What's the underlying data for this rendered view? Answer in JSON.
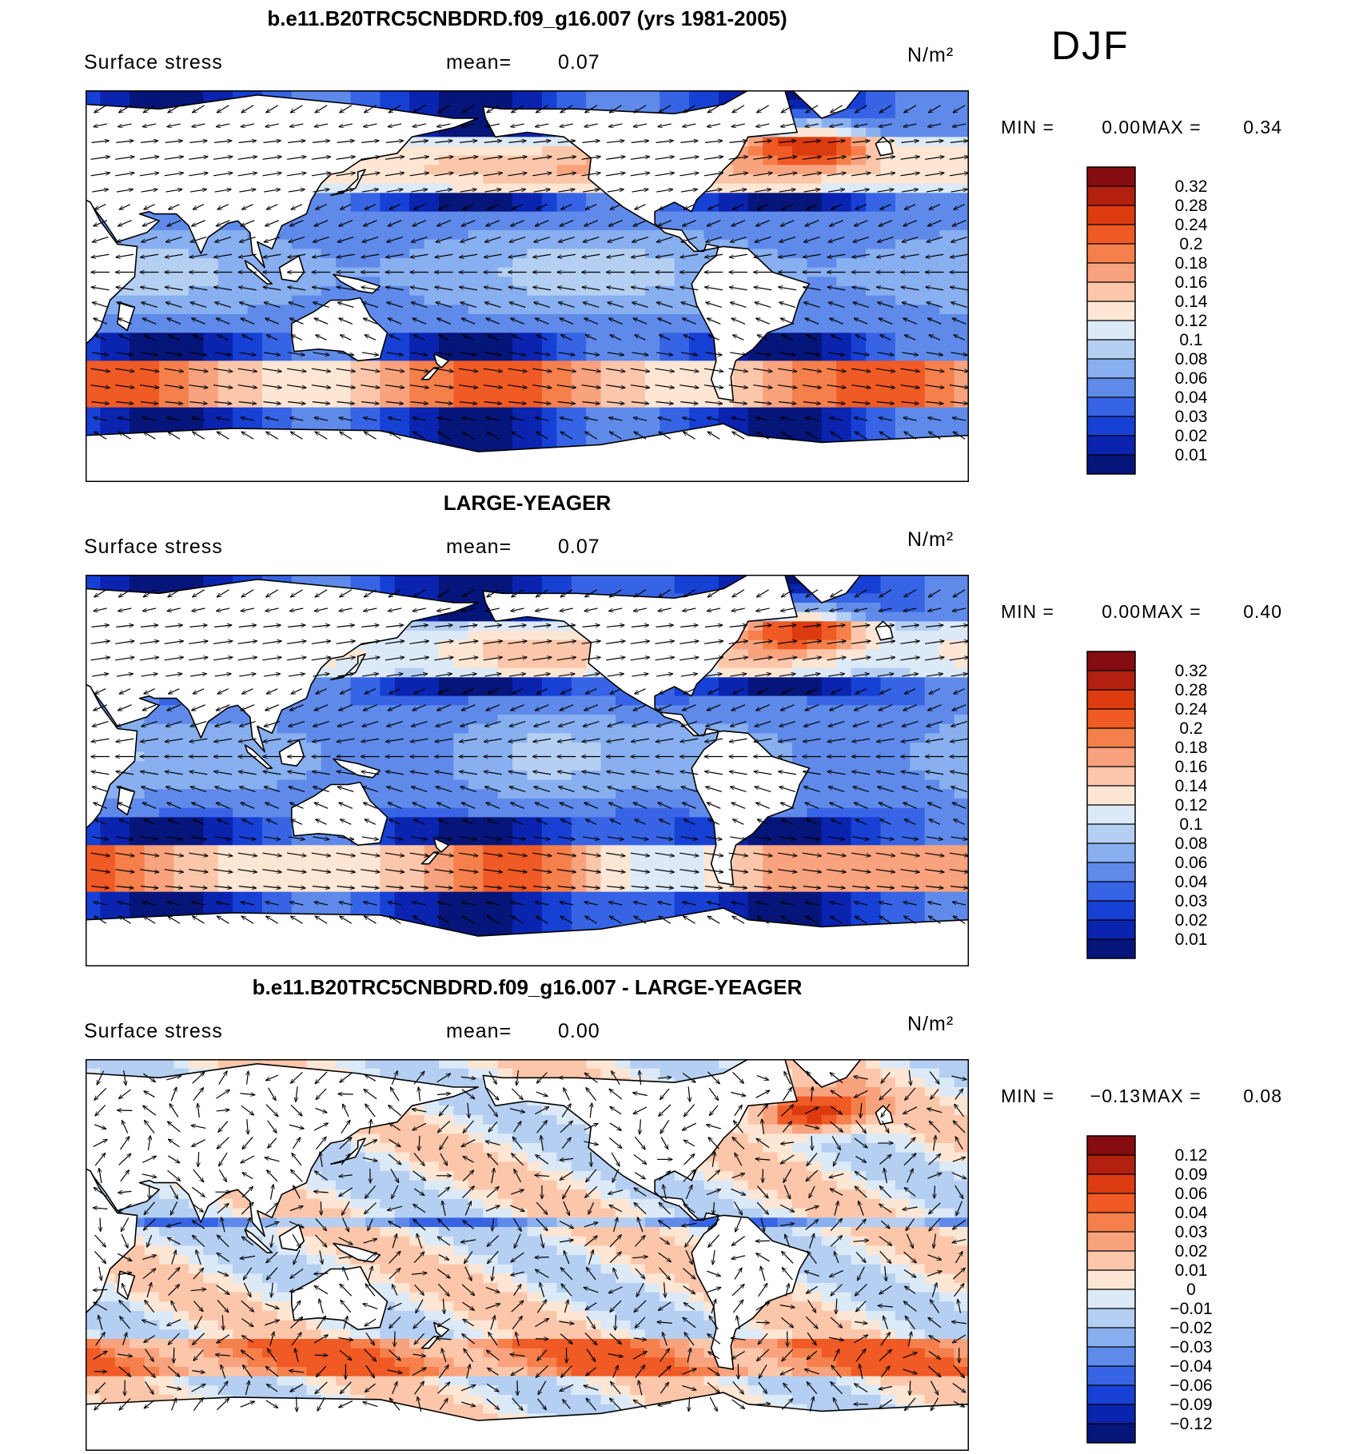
{
  "panels": [
    {
      "title": "b.e11.B20TRC5CNBDRD.f09_g16.007 (yrs 1981-2005)",
      "field": "Surface stress",
      "mean_label": "mean=",
      "mean_value": "0.07",
      "units": "N/m²",
      "season": "DJF",
      "min_label": "MIN =",
      "min_value": "0.00",
      "max_label": "MAX =",
      "max_value": "0.34",
      "colorbar": {
        "labels": [
          "0.32",
          "0.28",
          "0.24",
          "0.2",
          "0.18",
          "0.16",
          "0.14",
          "0.12",
          "0.1",
          "0.08",
          "0.06",
          "0.04",
          "0.03",
          "0.02",
          "0.01"
        ],
        "colors": [
          "#850c11",
          "#b3200f",
          "#dc3b10",
          "#f05a25",
          "#f5804b",
          "#f9a27e",
          "#fcc6aa",
          "#fde6d4",
          "#dce9f7",
          "#b4cff2",
          "#88afef",
          "#5f8aea",
          "#3764e4",
          "#1740d4",
          "#0a24b0",
          "#06157a"
        ]
      }
    },
    {
      "title": "LARGE-YEAGER",
      "field": "Surface stress",
      "mean_label": "mean=",
      "mean_value": "0.07",
      "units": "N/m²",
      "season": "",
      "min_label": "MIN =",
      "min_value": "0.00",
      "max_label": "MAX =",
      "max_value": "0.40",
      "colorbar": {
        "labels": [
          "0.32",
          "0.28",
          "0.24",
          "0.2",
          "0.18",
          "0.16",
          "0.14",
          "0.12",
          "0.1",
          "0.08",
          "0.06",
          "0.04",
          "0.03",
          "0.02",
          "0.01"
        ],
        "colors": [
          "#850c11",
          "#b3200f",
          "#dc3b10",
          "#f05a25",
          "#f5804b",
          "#f9a27e",
          "#fcc6aa",
          "#fde6d4",
          "#dce9f7",
          "#b4cff2",
          "#88afef",
          "#5f8aea",
          "#3764e4",
          "#1740d4",
          "#0a24b0",
          "#06157a"
        ]
      }
    },
    {
      "title": "b.e11.B20TRC5CNBDRD.f09_g16.007 - LARGE-YEAGER",
      "field": "Surface stress",
      "mean_label": "mean=",
      "mean_value": "0.00",
      "units": "N/m²",
      "season": "",
      "min_label": "MIN =",
      "min_value": "−0.13",
      "max_label": "MAX =",
      "max_value": "0.08",
      "colorbar": {
        "labels": [
          "0.12",
          "0.09",
          "0.06",
          "0.04",
          "0.03",
          "0.02",
          "0.01",
          "0",
          "−0.01",
          "−0.02",
          "−0.03",
          "−0.04",
          "−0.06",
          "−0.09",
          "−0.12"
        ],
        "colors": [
          "#850c11",
          "#b3200f",
          "#dc3b10",
          "#f05a25",
          "#f5804b",
          "#f9a27e",
          "#fcc6aa",
          "#fde6d4",
          "#dce9f7",
          "#b4cff2",
          "#88afef",
          "#5f8aea",
          "#3764e4",
          "#1740d4",
          "#0a24b0",
          "#06157a"
        ]
      }
    }
  ]
}
